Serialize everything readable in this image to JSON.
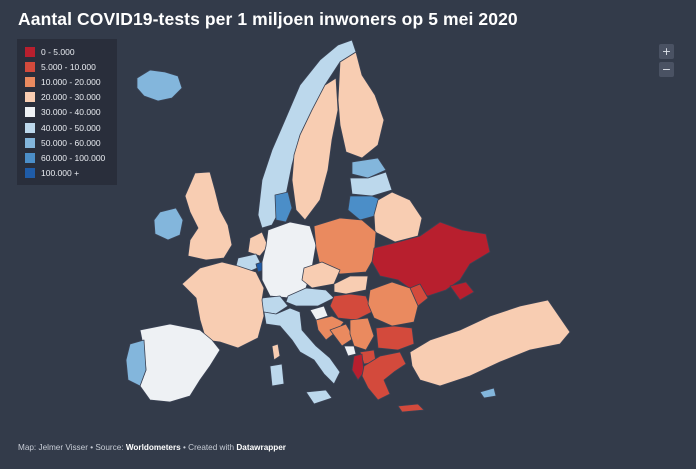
{
  "title": "Aantal COVID19-tests per 1 miljoen inwoners op 5 mei 2020",
  "legend": [
    {
      "label": "0 - 5.000",
      "color": "#b81f2e"
    },
    {
      "label": "5.000 - 10.000",
      "color": "#d34a3c"
    },
    {
      "label": "10.000 - 20.000",
      "color": "#ea8a5f"
    },
    {
      "label": "20.000 - 30.000",
      "color": "#f8cdb2"
    },
    {
      "label": "30.000 - 40.000",
      "color": "#eef1f4"
    },
    {
      "label": "40.000 - 50.000",
      "color": "#bcd8ec"
    },
    {
      "label": "50.000 - 60.000",
      "color": "#83b6dc"
    },
    {
      "label": "60.000 - 100.000",
      "color": "#4b8ec8"
    },
    {
      "label": "100.000 +",
      "color": "#1f5ca8"
    }
  ],
  "zoom": {
    "in_label": "+",
    "out_label": "−"
  },
  "footer": {
    "prefix": "Map: Jelmer Visser • Source: ",
    "source": "Worldometers",
    "middle": " • Created with ",
    "tool": "Datawrapper"
  },
  "colors": {
    "background": "#333b4a"
  }
}
